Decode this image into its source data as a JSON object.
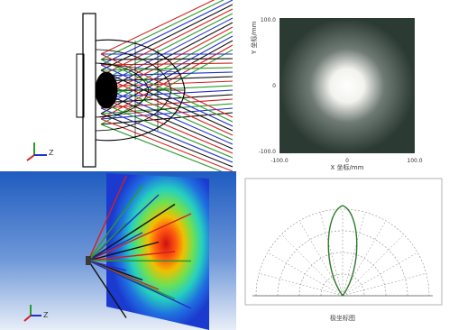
{
  "panels": {
    "ray_trace": {
      "name": "lamp ray trace view",
      "axis_labels": {
        "z": "Z"
      }
    },
    "irradiance": {
      "y_axis_label": "Y 坐标/mm",
      "x_axis_label": "X 坐标/mm",
      "y_ticks": [
        "100.0",
        "0",
        "-100.0"
      ],
      "x_ticks": [
        "-100.0",
        "0",
        "100.0"
      ],
      "colors": {
        "background": "#2c3a34",
        "center": "#ffffff"
      }
    },
    "illuminance_3d": {
      "axis_labels": {
        "z": "Z"
      },
      "colors": {
        "bg_top": "#1f5cc0",
        "bg_bottom": "#e8eef8",
        "hot": "#d01010",
        "warm": "#f0c000",
        "cool": "#25d0c0",
        "cold": "#1b3bd0"
      }
    },
    "polar_plot": {
      "caption": "极坐标图",
      "colors": {
        "grid": "#8a8a8a",
        "curve": "#2a7a2a"
      }
    }
  },
  "ray_colors": [
    "#d42020",
    "#2a9a2a",
    "#2030c8",
    "#101010"
  ]
}
